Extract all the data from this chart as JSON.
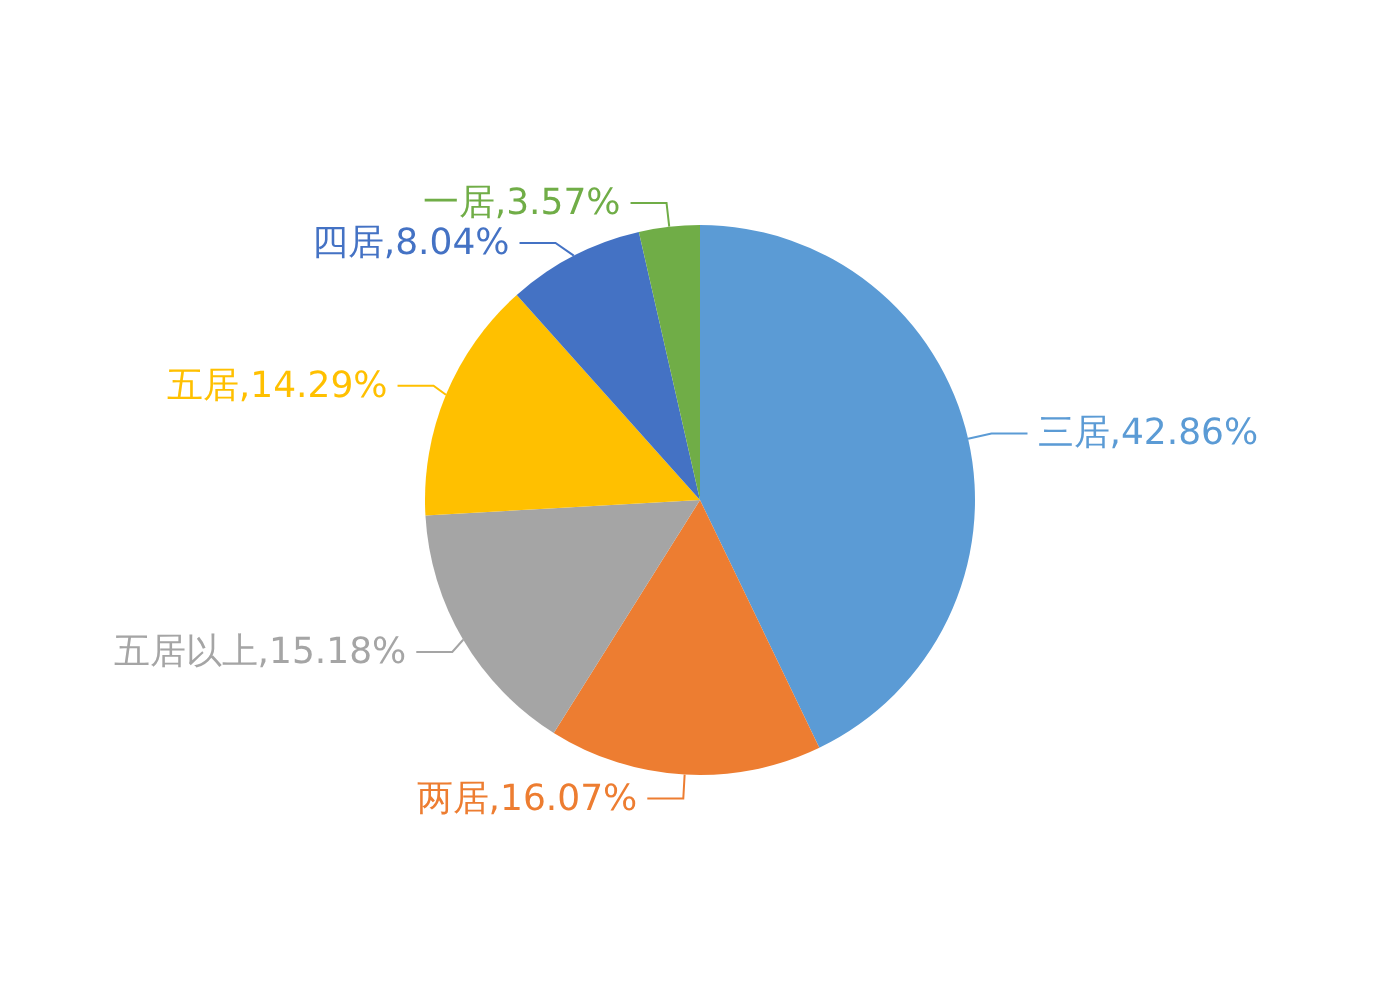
{
  "chart_data": {
    "type": "pie",
    "categories": [
      "三居",
      "两居",
      "五居以上",
      "五居",
      "四居",
      "一居"
    ],
    "values": [
      42.86,
      16.07,
      15.18,
      14.29,
      8.04,
      3.57
    ],
    "value_labels": [
      "42.86%",
      "16.07%",
      "15.18%",
      "14.29%",
      "8.04%",
      "3.57%"
    ],
    "colors": [
      "#5b9bd5",
      "#ed7d31",
      "#a5a5a5",
      "#ffc000",
      "#4472c4",
      "#70ad47"
    ]
  }
}
